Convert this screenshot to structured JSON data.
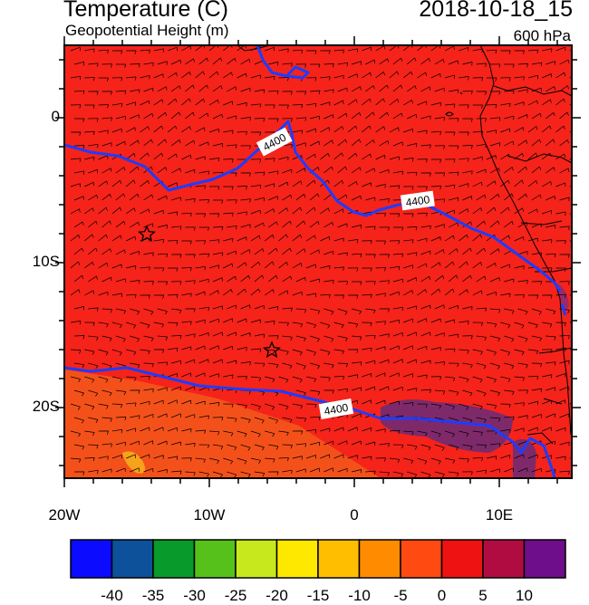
{
  "header": {
    "title": "Temperature (C)",
    "subtitle": "Geopotential Height (m)",
    "datetime": "2018-10-18_15",
    "level": "600 hPa"
  },
  "map": {
    "contour_label": "4400",
    "lat_ticks": [
      "0",
      "10S",
      "20S"
    ],
    "lon_ticks": [
      "20W",
      "10W",
      "0",
      "10E"
    ],
    "colors": {
      "main_fill": "#f5231a",
      "warm_patch": "#f4511a",
      "hot_spot": "#f6a21a",
      "purple_patch": "#7e2a6a",
      "contour": "#1e3cff"
    },
    "markers": [
      "star-marker",
      "star-marker"
    ]
  },
  "colorbar": {
    "colors": [
      "#0b0bff",
      "#0c5199",
      "#089a2a",
      "#57c11c",
      "#c7e81c",
      "#ffe800",
      "#ffbf00",
      "#ff8c00",
      "#ff4a12",
      "#ee1212",
      "#b00c42",
      "#6e0e8a"
    ],
    "labels": [
      "-40",
      "-35",
      "-30",
      "-25",
      "-20",
      "-15",
      "-10",
      "-5",
      "0",
      "5",
      "10"
    ]
  }
}
